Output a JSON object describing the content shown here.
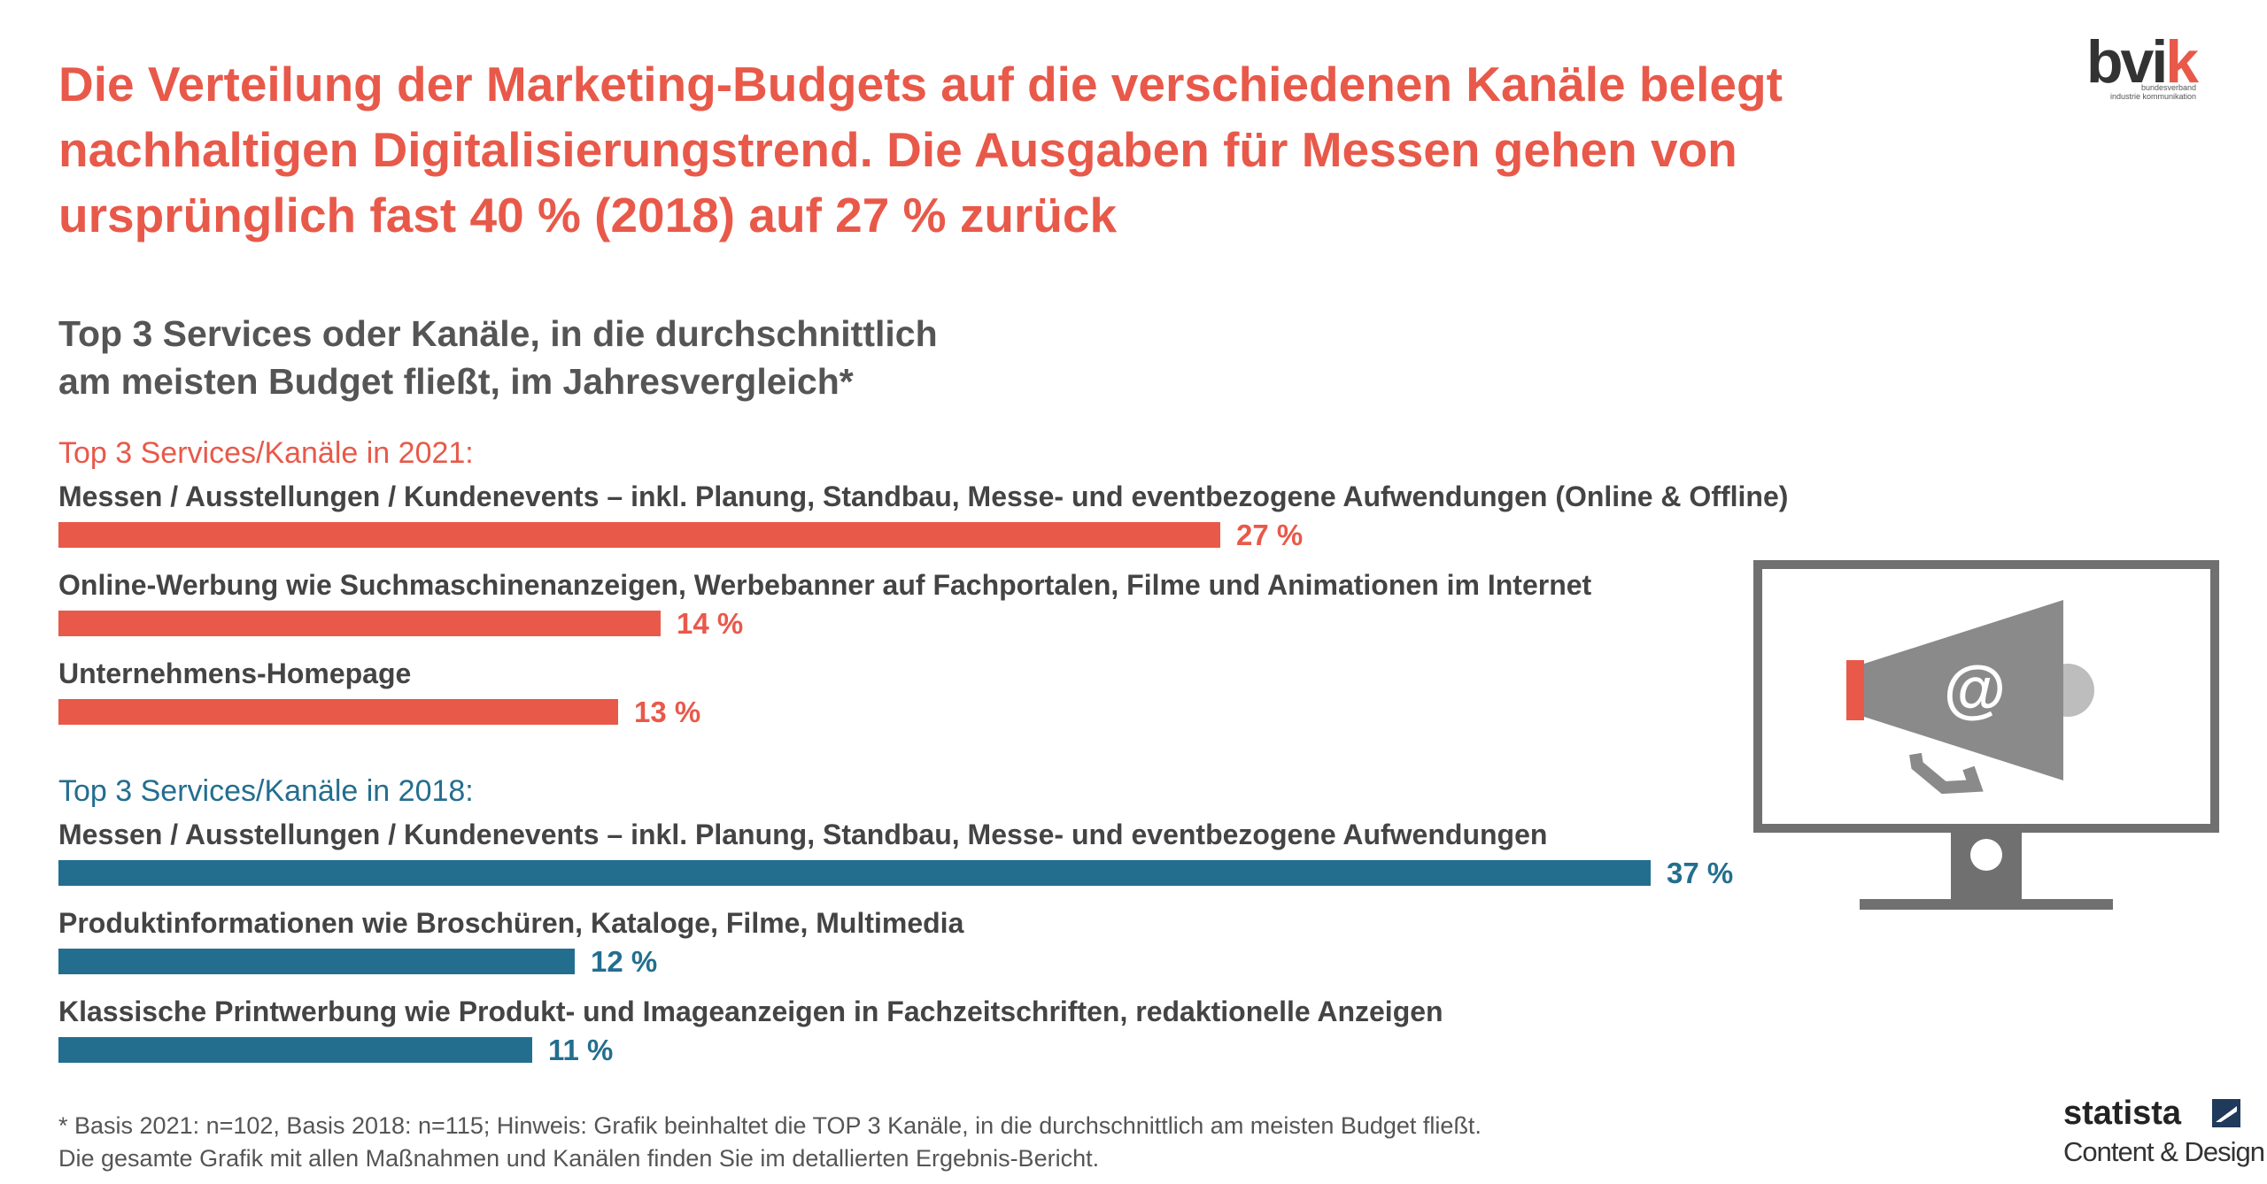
{
  "headline": "Die Verteilung der Marketing-Budgets auf die verschiedenen Kanäle belegt nachhaltigen Digitalisierungstrend. Die Ausgaben für Messen gehen von ursprünglich fast 40 % (2018) auf 27 % zurück",
  "logo": {
    "name": "bvik",
    "line1": "bundesverband",
    "line2": "industrie kommunikation"
  },
  "subtitle_line1": "Top 3 Services oder Kanäle, in die durchschnittlich",
  "subtitle_line2": "am meisten Budget fließt, im Jahresvergleich*",
  "colors": {
    "accent_2021": "#e8594a",
    "accent_2018": "#236e8f",
    "icon_gray": "#707070",
    "megaphone_gray": "#8a8a8a"
  },
  "chart_data": {
    "type": "bar",
    "orientation": "horizontal",
    "unit": "%",
    "xlim": [
      0,
      37
    ],
    "groups": [
      {
        "title": "Top 3 Services/Kanäle in 2021:",
        "color": "#e8594a",
        "items": [
          {
            "label": "Messen / Ausstellungen / Kundenevents – inkl. Planung, Standbau, Messe- und eventbezogene Aufwendungen (Online & Offline)",
            "value": 27,
            "value_label": "27 %"
          },
          {
            "label": "Online-Werbung wie Suchmaschinenanzeigen, Werbebanner auf Fachportalen, Filme und Animationen im Internet",
            "value": 14,
            "value_label": "14 %"
          },
          {
            "label": "Unternehmens-Homepage",
            "value": 13,
            "value_label": "13 %"
          }
        ]
      },
      {
        "title": "Top 3 Services/Kanäle in 2018:",
        "color": "#236e8f",
        "items": [
          {
            "label": "Messen / Ausstellungen / Kundenevents – inkl. Planung, Standbau, Messe- und eventbezogene Aufwendungen",
            "value": 37,
            "value_label": "37 %"
          },
          {
            "label": "Produktinformationen wie Broschüren, Kataloge, Filme, Multimedia",
            "value": 12,
            "value_label": "12 %"
          },
          {
            "label": "Klassische Printwerbung wie Produkt- und Imageanzeigen in Fachzeitschriften, redaktionelle Anzeigen",
            "value": 11,
            "value_label": "11 %"
          }
        ]
      }
    ]
  },
  "icon": {
    "name": "monitor-megaphone-icon",
    "symbol": "@"
  },
  "footnote_line1": "* Basis 2021: n=102, Basis 2018: n=115; Hinweis: Grafik beinhaltet die TOP 3 Kanäle, in die durchschnittlich am meisten Budget fließt.",
  "footnote_line2": "Die gesamte Grafik mit allen Maßnahmen und Kanälen finden Sie im detallierten Ergebnis-Bericht.",
  "statista": {
    "name": "statista",
    "sub": "Content & Design"
  }
}
